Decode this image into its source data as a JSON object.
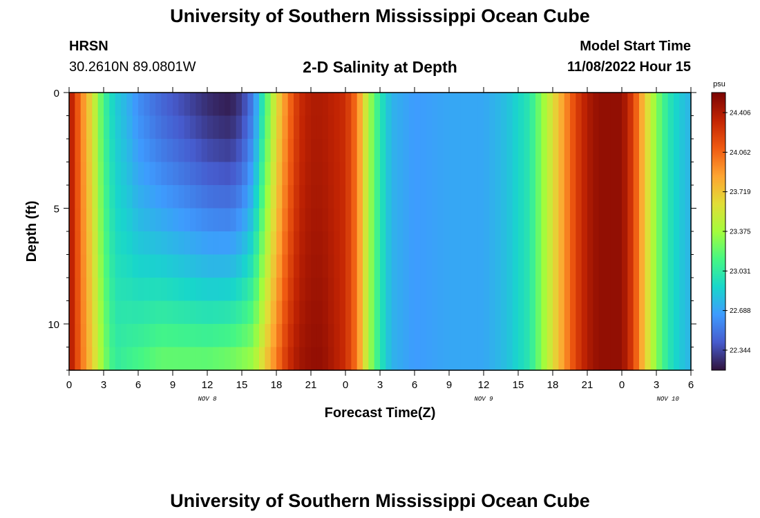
{
  "page": {
    "title": "University of Southern Mississippi Ocean Cube",
    "bottom_title": "University of Southern Mississippi Ocean Cube"
  },
  "header": {
    "station": "HRSN",
    "location": "30.2610N  89.0801W",
    "plot_title": "2-D Salinity at Depth",
    "model_start_label": "Model Start Time",
    "model_start_value": "11/08/2022 Hour 15"
  },
  "chart_data": {
    "type": "heatmap",
    "title": "2-D Salinity at Depth",
    "xlabel": "Forecast Time(Z)",
    "ylabel": "Depth (ft)",
    "x_range_hours": [
      0,
      54
    ],
    "y_range_ft": [
      0,
      12
    ],
    "x_ticks": [
      {
        "hour": 0,
        "label": "0"
      },
      {
        "hour": 3,
        "label": "3"
      },
      {
        "hour": 6,
        "label": "6"
      },
      {
        "hour": 9,
        "label": "9"
      },
      {
        "hour": 12,
        "label": "12"
      },
      {
        "hour": 15,
        "label": "15"
      },
      {
        "hour": 18,
        "label": "18"
      },
      {
        "hour": 21,
        "label": "21"
      },
      {
        "hour": 24,
        "label": "0"
      },
      {
        "hour": 27,
        "label": "3"
      },
      {
        "hour": 30,
        "label": "6"
      },
      {
        "hour": 33,
        "label": "9"
      },
      {
        "hour": 36,
        "label": "12"
      },
      {
        "hour": 39,
        "label": "15"
      },
      {
        "hour": 42,
        "label": "18"
      },
      {
        "hour": 45,
        "label": "21"
      },
      {
        "hour": 48,
        "label": "0"
      },
      {
        "hour": 51,
        "label": "3"
      },
      {
        "hour": 54,
        "label": "6"
      }
    ],
    "y_ticks": [
      {
        "depth": 0,
        "label": "0"
      },
      {
        "depth": 5,
        "label": "5"
      },
      {
        "depth": 10,
        "label": "10"
      }
    ],
    "date_labels": [
      {
        "hour": 12,
        "label": "NOV 8"
      },
      {
        "hour": 36,
        "label": "NOV 9"
      },
      {
        "hour": 52,
        "label": "NOV 10"
      }
    ],
    "colorbar": {
      "unit": "psu",
      "min": 22.17,
      "max": 24.58,
      "ticks": [
        "24.406",
        "24.062",
        "23.719",
        "23.375",
        "23.031",
        "22.688",
        "22.344"
      ],
      "tick_values": [
        24.406,
        24.062,
        23.719,
        23.375,
        23.031,
        22.688,
        22.344
      ]
    },
    "surface_salinity_profile": {
      "hours": [
        0,
        1,
        2,
        3,
        4,
        5,
        6,
        8,
        10,
        12,
        13,
        14,
        15,
        16,
        17,
        18,
        19,
        20,
        21,
        22,
        24,
        25,
        26,
        27,
        28,
        30,
        33,
        36,
        38,
        40,
        41,
        42,
        43,
        44,
        45,
        46,
        48,
        49,
        50,
        51,
        52,
        53,
        54
      ],
      "values": [
        24.45,
        24.0,
        23.6,
        23.1,
        22.85,
        22.75,
        22.6,
        22.45,
        22.35,
        22.25,
        22.22,
        22.2,
        22.3,
        22.55,
        23.1,
        23.6,
        24.0,
        24.3,
        24.4,
        24.4,
        24.3,
        24.0,
        23.4,
        23.0,
        22.75,
        22.65,
        22.7,
        22.7,
        22.8,
        23.0,
        23.3,
        23.6,
        23.9,
        24.2,
        24.4,
        24.5,
        24.5,
        24.2,
        23.7,
        23.3,
        23.0,
        22.85,
        22.75
      ]
    },
    "bottom_salinity_profile": {
      "hours": [
        0,
        1,
        2,
        3,
        4,
        6,
        8,
        10,
        12,
        14,
        16,
        17,
        18,
        19,
        20,
        21,
        22,
        24,
        25,
        26,
        27,
        28,
        30,
        33,
        36,
        38,
        40,
        41,
        42,
        43,
        44,
        45,
        46,
        48,
        49,
        50,
        51,
        52,
        53,
        54
      ],
      "values": [
        24.45,
        24.05,
        23.7,
        23.3,
        23.05,
        23.15,
        23.25,
        23.25,
        23.25,
        23.3,
        23.4,
        23.7,
        24.0,
        24.3,
        24.45,
        24.5,
        24.5,
        24.3,
        24.0,
        23.4,
        23.0,
        22.75,
        22.65,
        22.7,
        22.7,
        22.8,
        23.0,
        23.3,
        23.6,
        23.9,
        24.2,
        24.4,
        24.5,
        24.5,
        24.2,
        23.7,
        23.3,
        23.0,
        22.85,
        22.75
      ]
    }
  }
}
